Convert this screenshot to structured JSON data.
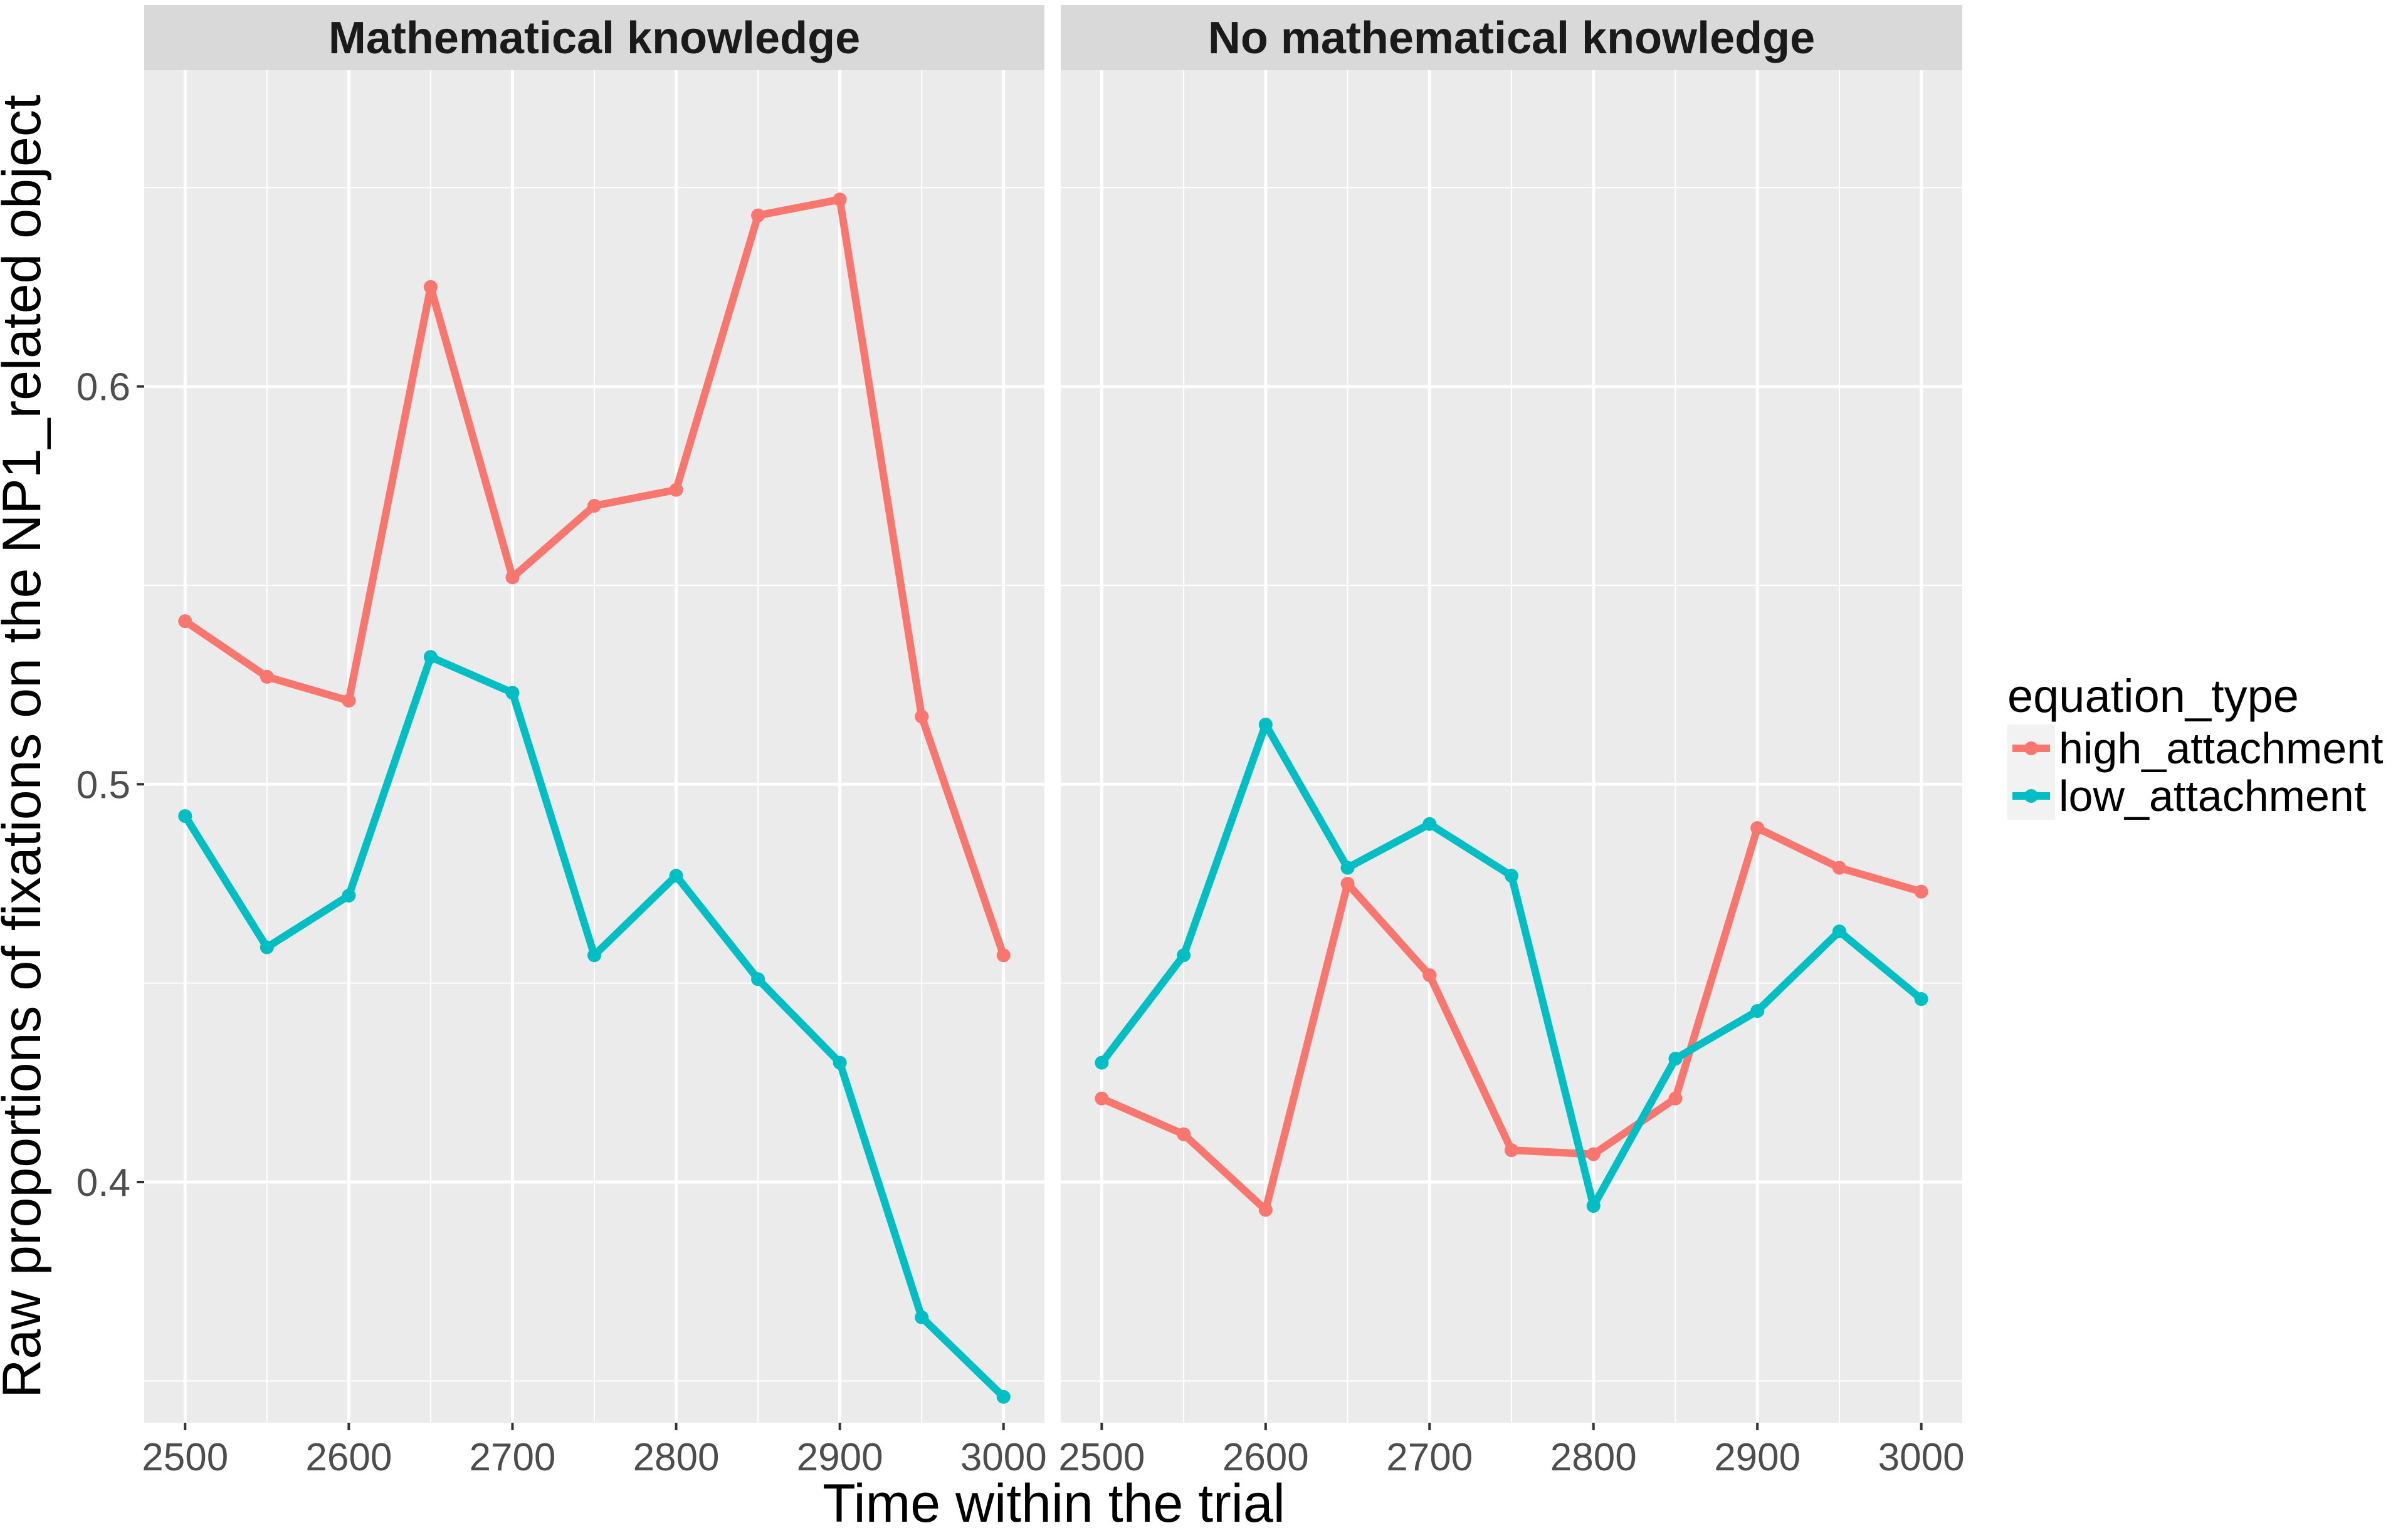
{
  "chart_data": {
    "type": "line",
    "facet_variable": "panel",
    "xlabel": "Time within the trial",
    "ylabel": "Raw proportions of fixations on the NP1_related object",
    "xlim": [
      2475,
      3025
    ],
    "ylim": [
      0.3395,
      0.6795
    ],
    "x_ticks": [
      2500,
      2600,
      2700,
      2800,
      2900,
      3000
    ],
    "y_ticks": [
      0.4,
      0.5,
      0.6
    ],
    "y_tick_labels": [
      "0.4",
      "0.5",
      "0.6"
    ],
    "grid": true,
    "background": "#ebebeb",
    "legend": {
      "title": "equation_type",
      "position": "right",
      "entries": [
        {
          "name": "high_attachment",
          "color": "#f8766d"
        },
        {
          "name": "low_attachment",
          "color": "#00bfc4"
        }
      ]
    },
    "x": [
      2500,
      2550,
      2600,
      2650,
      2700,
      2750,
      2800,
      2850,
      2900,
      2950,
      3000
    ],
    "panels": [
      {
        "title": "Mathematical knowledge",
        "series": [
          {
            "name": "high_attachment",
            "color": "#f8766d",
            "values": [
              0.541,
              0.527,
              0.521,
              0.625,
              0.552,
              0.57,
              0.574,
              0.643,
              0.647,
              0.517,
              0.457
            ]
          },
          {
            "name": "low_attachment",
            "color": "#00bfc4",
            "values": [
              0.492,
              0.459,
              0.472,
              0.532,
              0.523,
              0.457,
              0.477,
              0.451,
              0.43,
              0.366,
              0.346
            ]
          }
        ]
      },
      {
        "title": "No mathematical knowledge",
        "series": [
          {
            "name": "high_attachment",
            "color": "#f8766d",
            "values": [
              0.421,
              0.412,
              0.393,
              0.475,
              0.452,
              0.408,
              0.407,
              0.421,
              0.489,
              0.479,
              0.473
            ]
          },
          {
            "name": "low_attachment",
            "color": "#00bfc4",
            "values": [
              0.43,
              0.457,
              0.515,
              0.479,
              0.49,
              0.477,
              0.394,
              0.431,
              0.443,
              0.463,
              0.446
            ]
          }
        ]
      }
    ]
  }
}
